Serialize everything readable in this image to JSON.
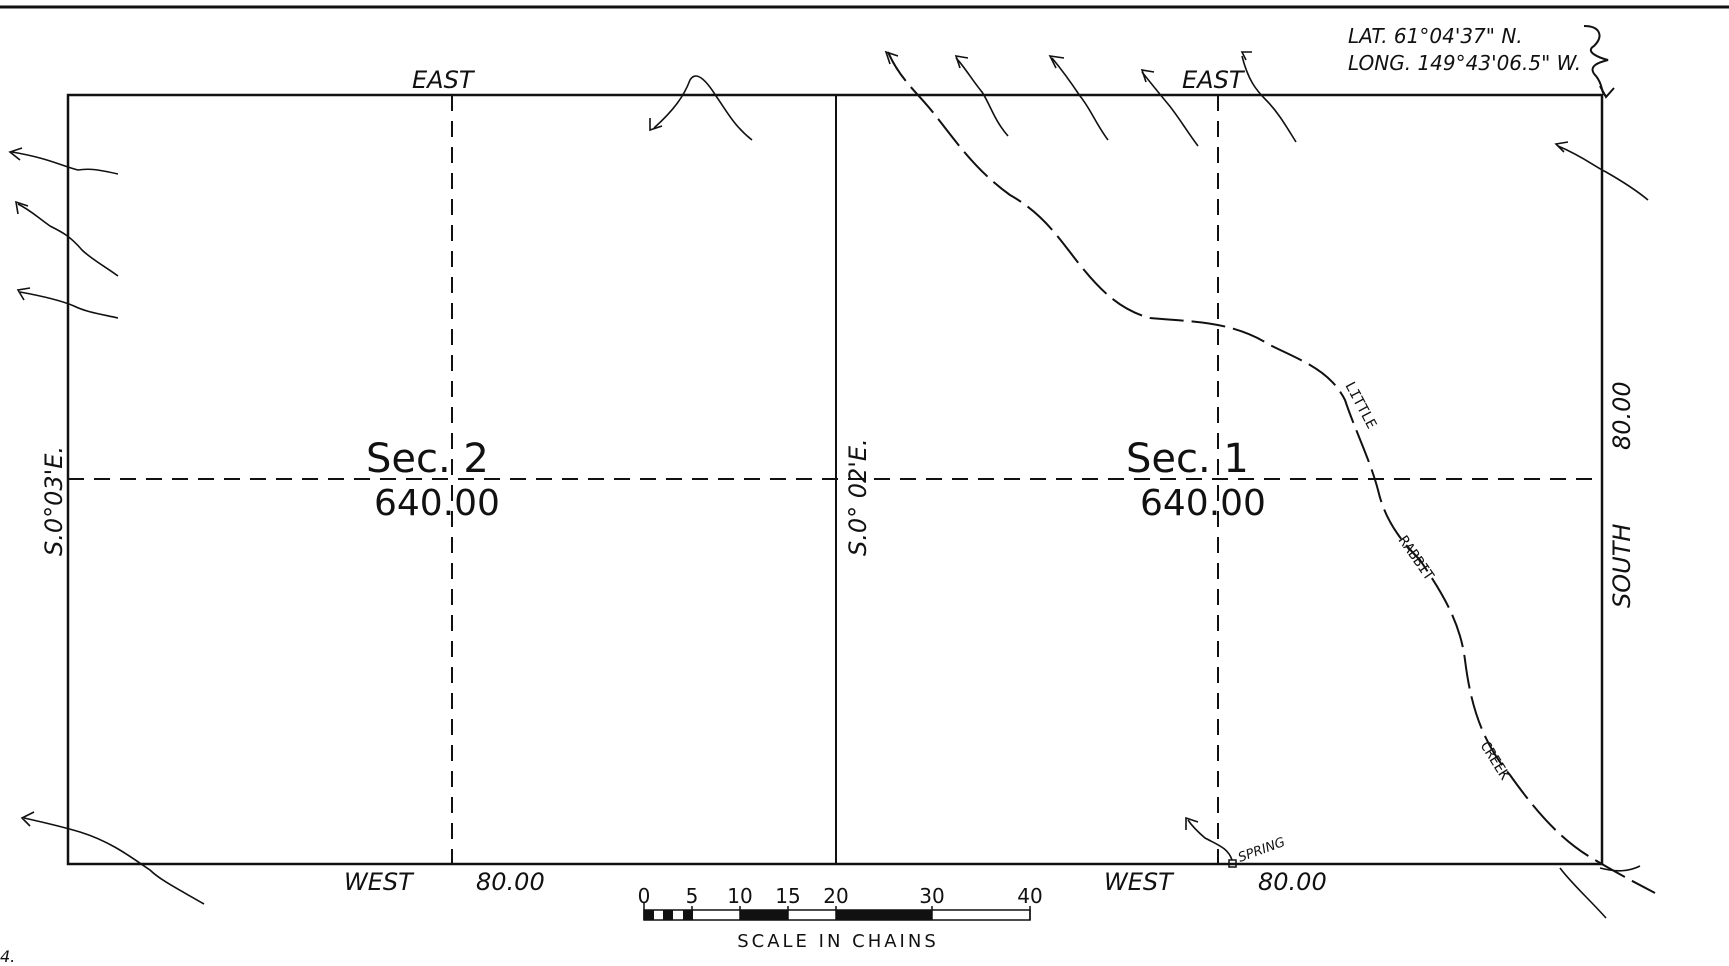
{
  "coordinates": {
    "lat": "LAT. 61°04'37\" N.",
    "long": "LONG. 149°43'06.5\" W."
  },
  "boundaries": {
    "north_left": "EAST",
    "north_right": "EAST",
    "south_left": "WEST",
    "south_left_distance": "80.00",
    "south_right": "WEST",
    "south_right_distance": "80.00",
    "west_bearing": "S.0°03'E.",
    "middle_bearing": "S.0° 02'E.",
    "east_bearing": "SOUTH",
    "east_distance": "80.00"
  },
  "sections": [
    {
      "name": "Sec. 2",
      "area": "640.00"
    },
    {
      "name": "Sec. 1",
      "area": "640.00"
    }
  ],
  "features": {
    "creek_words": [
      "LITTLE",
      "RABBIT",
      "CREEK"
    ],
    "spring": "SPRING"
  },
  "scale": {
    "ticks": [
      "0",
      "5",
      "10",
      "15",
      "20",
      "30",
      "40"
    ],
    "label": "SCALE IN CHAINS"
  },
  "corner_mark": "4."
}
